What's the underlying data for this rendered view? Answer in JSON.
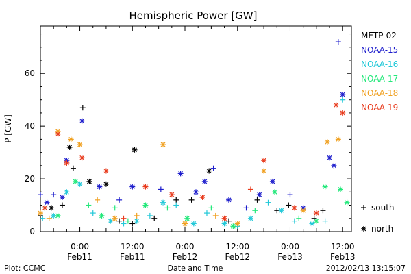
{
  "chart_data": {
    "type": "scatter",
    "title": "Hemispheric Power [GW]",
    "xlabel": "Date and Time",
    "ylabel": "P [GW]",
    "xlim": [
      "2012-02-10T15:00",
      "2012-02-13T14:00"
    ],
    "ylim": [
      0,
      78
    ],
    "y_ticks": [
      0,
      20,
      40,
      60
    ],
    "x_ticks": [
      {
        "t": "2012-02-11T00:00",
        "label1": "0:00",
        "label2": "Feb11"
      },
      {
        "t": "2012-02-11T12:00",
        "label1": "12:00",
        "label2": "Feb11"
      },
      {
        "t": "2012-02-12T00:00",
        "label1": "0:00",
        "label2": "Feb12"
      },
      {
        "t": "2012-02-12T12:00",
        "label1": "12:00",
        "label2": "Feb12"
      },
      {
        "t": "2012-02-13T00:00",
        "label1": "0:00",
        "label2": "Feb13"
      },
      {
        "t": "2012-02-13T12:00",
        "label1": "12:00",
        "label2": "Feb13"
      }
    ],
    "marker_legend": [
      {
        "symbol": "+",
        "label": "south"
      },
      {
        "symbol": "*",
        "label": "north"
      }
    ],
    "legend_position": "right",
    "series": [
      {
        "name": "METP-02",
        "color": "#000000",
        "points": [
          {
            "t": "2012-02-10T15:00",
            "y": 6,
            "m": "+"
          },
          {
            "t": "2012-02-10T17:30",
            "y": 9,
            "m": "*"
          },
          {
            "t": "2012-02-10T20:00",
            "y": 10,
            "m": "+"
          },
          {
            "t": "2012-02-10T21:40",
            "y": 32,
            "m": "*"
          },
          {
            "t": "2012-02-10T22:30",
            "y": 24,
            "m": "+"
          },
          {
            "t": "2012-02-11T00:40",
            "y": 47,
            "m": "+"
          },
          {
            "t": "2012-02-11T02:10",
            "y": 19,
            "m": "*"
          },
          {
            "t": "2012-02-11T06:00",
            "y": 18,
            "m": "*"
          },
          {
            "t": "2012-02-11T09:00",
            "y": 4,
            "m": "+"
          },
          {
            "t": "2012-02-11T12:00",
            "y": 3,
            "m": "+"
          },
          {
            "t": "2012-02-11T12:30",
            "y": 31,
            "m": "*"
          },
          {
            "t": "2012-02-11T17:00",
            "y": 5,
            "m": "+"
          },
          {
            "t": "2012-02-11T22:00",
            "y": 12,
            "m": "+"
          },
          {
            "t": "2012-02-12T01:30",
            "y": 12,
            "m": "+"
          },
          {
            "t": "2012-02-12T05:30",
            "y": 23,
            "m": "*"
          },
          {
            "t": "2012-02-12T10:00",
            "y": 4,
            "m": "+"
          },
          {
            "t": "2012-02-12T16:30",
            "y": 12,
            "m": "+"
          },
          {
            "t": "2012-02-12T21:00",
            "y": 8,
            "m": "+"
          },
          {
            "t": "2012-02-12T23:40",
            "y": 10,
            "m": "+"
          },
          {
            "t": "2012-02-13T05:30",
            "y": 5,
            "m": "+"
          },
          {
            "t": "2012-02-13T07:30",
            "y": 8,
            "m": "+"
          }
        ]
      },
      {
        "name": "NOAA-15",
        "color": "#1c1ccc",
        "points": [
          {
            "t": "2012-02-10T15:00",
            "y": 14,
            "m": "+"
          },
          {
            "t": "2012-02-10T16:30",
            "y": 11,
            "m": "*"
          },
          {
            "t": "2012-02-10T18:00",
            "y": 14,
            "m": "+"
          },
          {
            "t": "2012-02-10T20:00",
            "y": 13,
            "m": "*"
          },
          {
            "t": "2012-02-10T21:00",
            "y": 27,
            "m": "*"
          },
          {
            "t": "2012-02-11T00:30",
            "y": 42,
            "m": "*"
          },
          {
            "t": "2012-02-11T04:30",
            "y": 17,
            "m": "*"
          },
          {
            "t": "2012-02-11T09:00",
            "y": 12,
            "m": "+"
          },
          {
            "t": "2012-02-11T12:00",
            "y": 17,
            "m": "*"
          },
          {
            "t": "2012-02-11T18:30",
            "y": 16,
            "m": "+"
          },
          {
            "t": "2012-02-11T23:00",
            "y": 22,
            "m": "*"
          },
          {
            "t": "2012-02-12T02:30",
            "y": 15,
            "m": "*"
          },
          {
            "t": "2012-02-12T04:30",
            "y": 19,
            "m": "*"
          },
          {
            "t": "2012-02-12T06:30",
            "y": 24,
            "m": "+"
          },
          {
            "t": "2012-02-12T10:00",
            "y": 12,
            "m": "*"
          },
          {
            "t": "2012-02-12T14:00",
            "y": 9,
            "m": "+"
          },
          {
            "t": "2012-02-12T17:00",
            "y": 14,
            "m": "*"
          },
          {
            "t": "2012-02-12T20:00",
            "y": 19,
            "m": "*"
          },
          {
            "t": "2012-02-13T00:00",
            "y": 14,
            "m": "+"
          },
          {
            "t": "2012-02-13T03:00",
            "y": 9,
            "m": "*"
          },
          {
            "t": "2012-02-13T09:00",
            "y": 28,
            "m": "*"
          },
          {
            "t": "2012-02-13T10:00",
            "y": 25,
            "m": "*"
          },
          {
            "t": "2012-02-13T11:00",
            "y": 72,
            "m": "+"
          },
          {
            "t": "2012-02-13T12:00",
            "y": 52,
            "m": "*"
          }
        ]
      },
      {
        "name": "NOAA-16",
        "color": "#22c8d8",
        "points": [
          {
            "t": "2012-02-10T15:30",
            "y": 5,
            "m": "+"
          },
          {
            "t": "2012-02-10T18:00",
            "y": 6,
            "m": "*"
          },
          {
            "t": "2012-02-10T21:00",
            "y": 15,
            "m": "*"
          },
          {
            "t": "2012-02-11T00:00",
            "y": 18,
            "m": "*"
          },
          {
            "t": "2012-02-11T03:00",
            "y": 7,
            "m": "+"
          },
          {
            "t": "2012-02-11T07:00",
            "y": 4,
            "m": "*"
          },
          {
            "t": "2012-02-11T10:00",
            "y": 3,
            "m": "+"
          },
          {
            "t": "2012-02-11T13:00",
            "y": 4,
            "m": "*"
          },
          {
            "t": "2012-02-11T16:00",
            "y": 6,
            "m": "+"
          },
          {
            "t": "2012-02-11T19:00",
            "y": 11,
            "m": "*"
          },
          {
            "t": "2012-02-11T22:00",
            "y": 10,
            "m": "+"
          },
          {
            "t": "2012-02-12T02:00",
            "y": 3,
            "m": "*"
          },
          {
            "t": "2012-02-12T05:00",
            "y": 7,
            "m": "+"
          },
          {
            "t": "2012-02-12T09:00",
            "y": 3,
            "m": "*"
          },
          {
            "t": "2012-02-12T12:00",
            "y": 2,
            "m": "+"
          },
          {
            "t": "2012-02-12T15:00",
            "y": 5,
            "m": "*"
          },
          {
            "t": "2012-02-12T19:00",
            "y": 11,
            "m": "+"
          },
          {
            "t": "2012-02-12T22:00",
            "y": 8,
            "m": "*"
          },
          {
            "t": "2012-02-13T01:00",
            "y": 4,
            "m": "+"
          },
          {
            "t": "2012-02-13T05:00",
            "y": 3,
            "m": "*"
          },
          {
            "t": "2012-02-13T08:00",
            "y": 4,
            "m": "+"
          },
          {
            "t": "2012-02-13T12:00",
            "y": 50,
            "m": "+"
          }
        ]
      },
      {
        "name": "NOAA-17",
        "color": "#22e87a",
        "points": [
          {
            "t": "2012-02-10T16:00",
            "y": 9,
            "m": "+"
          },
          {
            "t": "2012-02-10T19:00",
            "y": 6,
            "m": "*"
          },
          {
            "t": "2012-02-10T23:00",
            "y": 19,
            "m": "*"
          },
          {
            "t": "2012-02-11T02:00",
            "y": 10,
            "m": "+"
          },
          {
            "t": "2012-02-11T05:00",
            "y": 6,
            "m": "*"
          },
          {
            "t": "2012-02-11T08:00",
            "y": 9,
            "m": "+"
          },
          {
            "t": "2012-02-11T11:00",
            "y": 4,
            "m": "+"
          },
          {
            "t": "2012-02-11T15:00",
            "y": 10,
            "m": "*"
          },
          {
            "t": "2012-02-11T20:00",
            "y": 9,
            "m": "+"
          },
          {
            "t": "2012-02-12T00:30",
            "y": 5,
            "m": "*"
          },
          {
            "t": "2012-02-12T06:00",
            "y": 9,
            "m": "+"
          },
          {
            "t": "2012-02-12T11:00",
            "y": 2,
            "m": "*"
          },
          {
            "t": "2012-02-12T16:00",
            "y": 8,
            "m": "+"
          },
          {
            "t": "2012-02-12T20:30",
            "y": 15,
            "m": "*"
          },
          {
            "t": "2012-02-13T02:00",
            "y": 5,
            "m": "+"
          },
          {
            "t": "2012-02-13T06:00",
            "y": 4,
            "m": "*"
          },
          {
            "t": "2012-02-13T08:00",
            "y": 17,
            "m": "*"
          },
          {
            "t": "2012-02-13T11:30",
            "y": 16,
            "m": "*"
          },
          {
            "t": "2012-02-13T13:00",
            "y": 11,
            "m": "*"
          }
        ]
      },
      {
        "name": "NOAA-18",
        "color": "#f0a020",
        "points": [
          {
            "t": "2012-02-10T15:00",
            "y": 7,
            "m": "*"
          },
          {
            "t": "2012-02-10T17:00",
            "y": 5,
            "m": "+"
          },
          {
            "t": "2012-02-10T19:00",
            "y": 38,
            "m": "*"
          },
          {
            "t": "2012-02-10T22:00",
            "y": 35,
            "m": "*"
          },
          {
            "t": "2012-02-11T00:00",
            "y": 33,
            "m": "*"
          },
          {
            "t": "2012-02-11T04:00",
            "y": 12,
            "m": "+"
          },
          {
            "t": "2012-02-11T08:00",
            "y": 5,
            "m": "*"
          },
          {
            "t": "2012-02-11T13:00",
            "y": 6,
            "m": "+"
          },
          {
            "t": "2012-02-11T19:00",
            "y": 33,
            "m": "*"
          },
          {
            "t": "2012-02-12T00:00",
            "y": 3,
            "m": "*"
          },
          {
            "t": "2012-02-12T07:00",
            "y": 6,
            "m": "+"
          },
          {
            "t": "2012-02-12T12:00",
            "y": 3,
            "m": "*"
          },
          {
            "t": "2012-02-12T18:00",
            "y": 23,
            "m": "*"
          },
          {
            "t": "2012-02-13T03:00",
            "y": 8,
            "m": "*"
          },
          {
            "t": "2012-02-13T08:30",
            "y": 34,
            "m": "*"
          },
          {
            "t": "2012-02-13T11:00",
            "y": 35,
            "m": "*"
          }
        ]
      },
      {
        "name": "NOAA-19",
        "color": "#e83a1c",
        "points": [
          {
            "t": "2012-02-10T16:00",
            "y": 9,
            "m": "*"
          },
          {
            "t": "2012-02-10T19:00",
            "y": 37,
            "m": "*"
          },
          {
            "t": "2012-02-10T21:00",
            "y": 26,
            "m": "*"
          },
          {
            "t": "2012-02-11T00:30",
            "y": 28,
            "m": "*"
          },
          {
            "t": "2012-02-11T06:00",
            "y": 23,
            "m": "*"
          },
          {
            "t": "2012-02-11T10:00",
            "y": 5,
            "m": "+"
          },
          {
            "t": "2012-02-11T15:00",
            "y": 17,
            "m": "*"
          },
          {
            "t": "2012-02-11T21:00",
            "y": 14,
            "m": "*"
          },
          {
            "t": "2012-02-12T04:00",
            "y": 13,
            "m": "*"
          },
          {
            "t": "2012-02-12T09:00",
            "y": 5,
            "m": "*"
          },
          {
            "t": "2012-02-12T15:00",
            "y": 16,
            "m": "+"
          },
          {
            "t": "2012-02-12T18:00",
            "y": 27,
            "m": "*"
          },
          {
            "t": "2012-02-13T01:00",
            "y": 9,
            "m": "*"
          },
          {
            "t": "2012-02-13T06:00",
            "y": 7,
            "m": "*"
          },
          {
            "t": "2012-02-13T10:30",
            "y": 48,
            "m": "*"
          },
          {
            "t": "2012-02-13T12:00",
            "y": 45,
            "m": "*"
          }
        ]
      }
    ]
  },
  "footer": {
    "left": "Plot: CCMC",
    "center": "Date and Time",
    "right": "2012/02/13 13:15:07"
  }
}
